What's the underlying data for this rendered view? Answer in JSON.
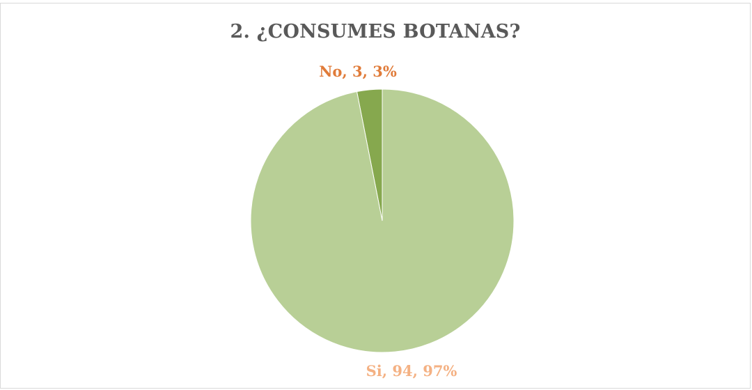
{
  "chart_data": {
    "type": "pie",
    "title": "2. ¿CONSUMES BOTANAS?",
    "slices": [
      {
        "label": "No",
        "value": 3,
        "percent": "3%",
        "color": "#86a84e",
        "label_color": "#e07b39",
        "text": "No, 3, 3%"
      },
      {
        "label": "Si",
        "value": 94,
        "percent": "97%",
        "color": "#b8cf96",
        "label_color": "#f4b183",
        "text": "Si, 94, 97%"
      }
    ],
    "legend": "none",
    "start_angle_deg": 0,
    "direction": "counterclockwise"
  }
}
